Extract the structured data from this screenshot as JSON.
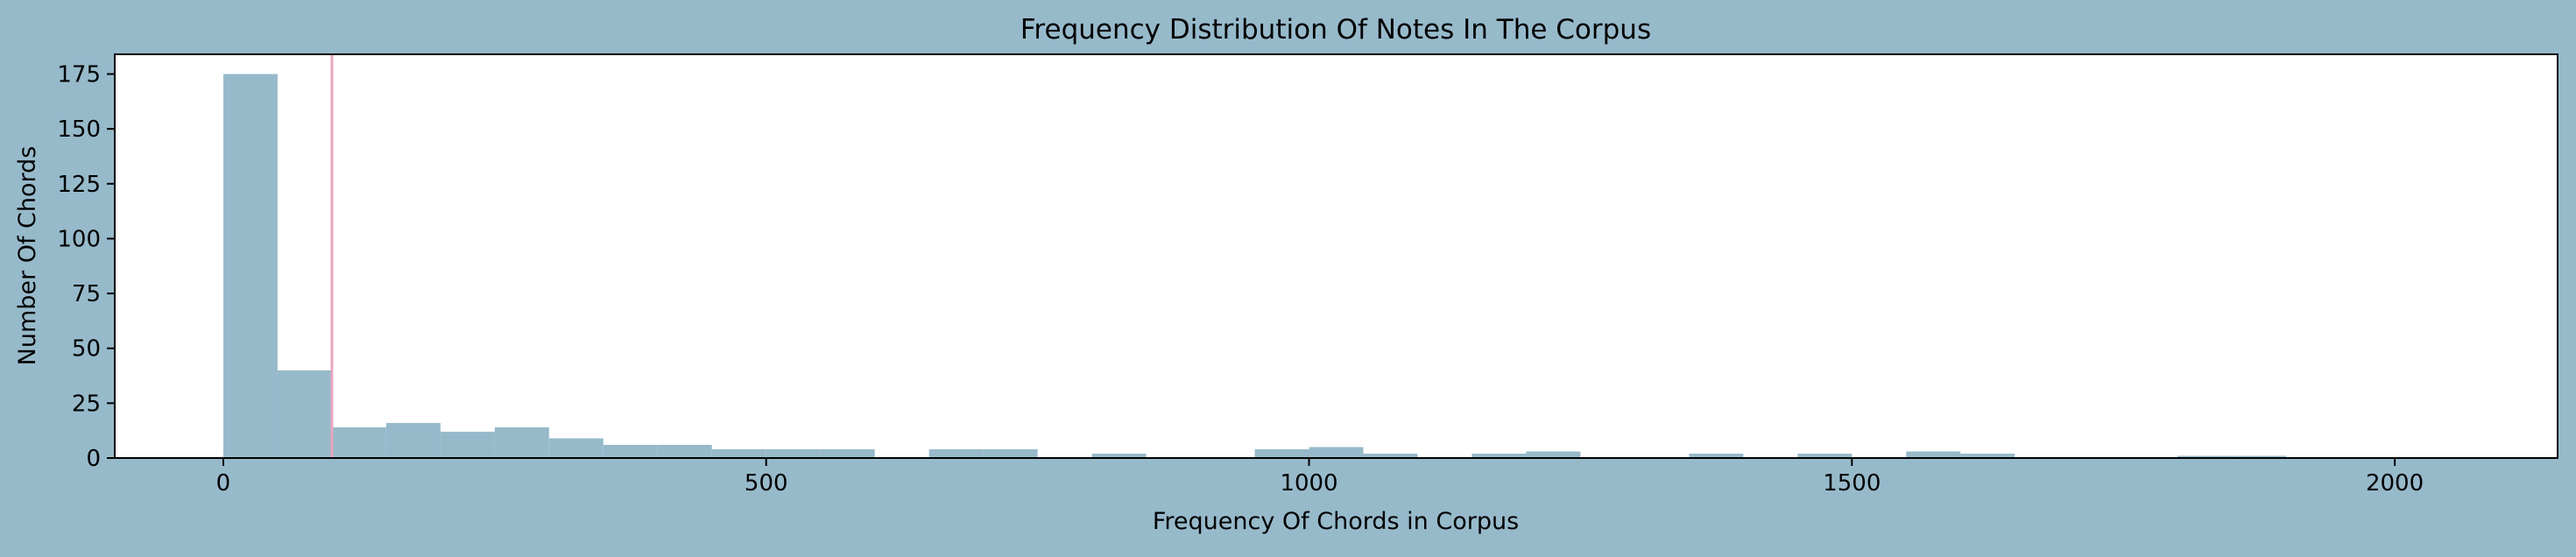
{
  "colors": {
    "figure_background": "#97BACB",
    "plot_background": "#FFFFFF",
    "bar_fill": "#97BACB",
    "vline": "#E8A5C0",
    "axis": "#000000"
  },
  "chart_data": {
    "type": "bar",
    "subtype": "histogram",
    "title": "Frequency Distribution Of Notes In The Corpus",
    "xlabel": "Frequency Of Chords in Corpus",
    "ylabel": "Number Of Chords",
    "xlim": [
      -100,
      2150
    ],
    "ylim": [
      0,
      184
    ],
    "xticks": [
      0,
      500,
      1000,
      1500,
      2000
    ],
    "xtick_labels": [
      "0",
      "500",
      "1000",
      "1500",
      "2000"
    ],
    "yticks": [
      0,
      25,
      50,
      75,
      100,
      125,
      150,
      175
    ],
    "ytick_labels": [
      "0",
      "25",
      "50",
      "75",
      "100",
      "125",
      "150",
      "175"
    ],
    "grid": false,
    "legend": false,
    "bin_width": 50,
    "bin_starts": [
      0,
      50,
      100,
      150,
      200,
      250,
      300,
      350,
      400,
      450,
      500,
      550,
      600,
      650,
      700,
      750,
      800,
      850,
      900,
      950,
      1000,
      1050,
      1100,
      1150,
      1200,
      1250,
      1300,
      1350,
      1400,
      1450,
      1500,
      1550,
      1600,
      1650,
      1700,
      1750,
      1800,
      1850,
      1900,
      1950,
      2000,
      2050
    ],
    "values": [
      175,
      40,
      14,
      16,
      12,
      14,
      9,
      6,
      6,
      4,
      4,
      4,
      0,
      4,
      4,
      0,
      2,
      0,
      0,
      4,
      5,
      2,
      0,
      2,
      3,
      0,
      0,
      2,
      0,
      2,
      0,
      3,
      2,
      0,
      0,
      0,
      1,
      1,
      0,
      0,
      0,
      0
    ],
    "vline_x": 100
  }
}
